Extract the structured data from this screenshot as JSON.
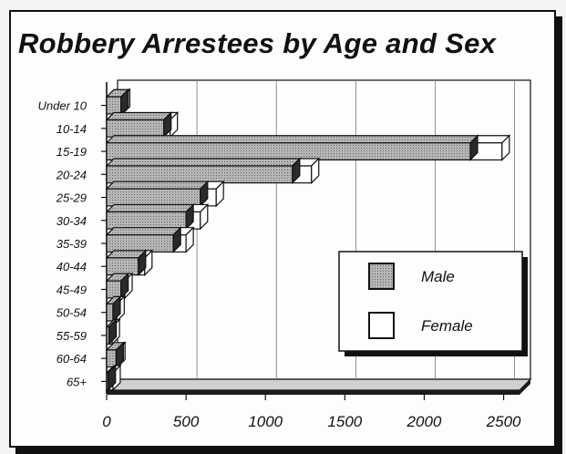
{
  "chart_data": {
    "type": "bar",
    "orientation": "horizontal",
    "stacked": true,
    "title": "Robbery Arrestees by Age and Sex",
    "categories": [
      "Under 10",
      "10-14",
      "15-19",
      "20-24",
      "25-29",
      "30-34",
      "35-39",
      "40-44",
      "45-49",
      "50-54",
      "55-59",
      "60-64",
      "65+"
    ],
    "series": [
      {
        "name": "Male",
        "values": [
          90,
          360,
          2290,
          1170,
          590,
          500,
          420,
          200,
          90,
          40,
          15,
          60,
          10
        ]
      },
      {
        "name": "Female",
        "values": [
          10,
          40,
          200,
          120,
          100,
          90,
          80,
          40,
          25,
          25,
          20,
          10,
          30
        ]
      }
    ],
    "xlim": [
      0,
      2600
    ],
    "xticks": [
      "0",
      "500",
      "1000",
      "1500",
      "2000",
      "2500"
    ],
    "grid": true,
    "legend_position": "right"
  },
  "colors": {
    "male": "#a9a9a9",
    "female": "#ffffff",
    "ink": "#111111"
  }
}
